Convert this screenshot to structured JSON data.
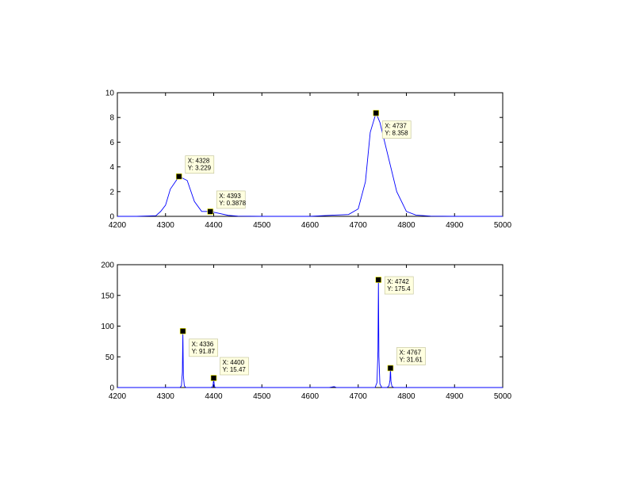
{
  "chart_data": [
    {
      "type": "line",
      "xlim": [
        4200,
        5000
      ],
      "ylim": [
        0,
        10
      ],
      "xticks": [
        4200,
        4300,
        4400,
        4500,
        4600,
        4700,
        4800,
        4900,
        5000
      ],
      "yticks": [
        0,
        2,
        4,
        6,
        8,
        10
      ],
      "grid": false,
      "line_color": "#0000ff",
      "series": [
        {
          "x": [
            4200,
            4240,
            4280,
            4290,
            4300,
            4310,
            4328,
            4345,
            4360,
            4375,
            4393,
            4410,
            4430,
            4450,
            4500,
            4600,
            4650,
            4680,
            4700,
            4715,
            4725,
            4737,
            4745,
            4760,
            4780,
            4800,
            4820,
            4850,
            4900,
            5000
          ],
          "y": [
            0,
            0,
            0.05,
            0.4,
            0.9,
            2.2,
            3.229,
            2.9,
            1.2,
            0.4,
            0.3878,
            0.25,
            0.08,
            0.02,
            0,
            0,
            0.1,
            0.15,
            0.6,
            2.8,
            6.8,
            8.358,
            7.6,
            5.2,
            2.0,
            0.4,
            0.1,
            0.02,
            0,
            0
          ]
        }
      ],
      "datatips": [
        {
          "x": 4328,
          "y": 3.229,
          "line1": "X: 4328",
          "line2": "Y: 3.229"
        },
        {
          "x": 4393,
          "y": 0.3878,
          "line1": "X: 4393",
          "line2": "Y: 0.3878"
        },
        {
          "x": 4737,
          "y": 8.358,
          "line1": "X: 4737",
          "line2": "Y: 8.358"
        }
      ]
    },
    {
      "type": "line",
      "xlim": [
        4200,
        5000
      ],
      "ylim": [
        0,
        200
      ],
      "xticks": [
        4200,
        4300,
        4400,
        4500,
        4600,
        4700,
        4800,
        4900,
        5000
      ],
      "yticks": [
        0,
        50,
        100,
        150,
        200
      ],
      "grid": false,
      "line_color": "#0000ff",
      "series": [
        {
          "x": [
            4200,
            4330,
            4333,
            4335,
            4336,
            4337,
            4339,
            4342,
            4395,
            4398,
            4399,
            4400,
            4401,
            4402,
            4405,
            4640,
            4650,
            4655,
            4700,
            4735,
            4739,
            4741,
            4742,
            4743,
            4745,
            4749,
            4760,
            4764,
            4766,
            4767,
            4768,
            4770,
            4774,
            5000
          ],
          "y": [
            0,
            0,
            3,
            25,
            91.87,
            20,
            3,
            0,
            0,
            2,
            6,
            15.47,
            5,
            1,
            0,
            0,
            1.5,
            0,
            0,
            0,
            8,
            60,
            175.4,
            50,
            6,
            0,
            0,
            3,
            12,
            31.61,
            10,
            2,
            0,
            0
          ]
        }
      ],
      "datatips": [
        {
          "x": 4336,
          "y": 91.87,
          "line1": "X: 4336",
          "line2": "Y: 91.87"
        },
        {
          "x": 4400,
          "y": 15.47,
          "line1": "X: 4400",
          "line2": "Y: 15.47"
        },
        {
          "x": 4742,
          "y": 175.4,
          "line1": "X: 4742",
          "line2": "Y: 175.4"
        },
        {
          "x": 4767,
          "y": 31.61,
          "line1": "X: 4767",
          "line2": "Y: 31.61"
        }
      ]
    }
  ]
}
